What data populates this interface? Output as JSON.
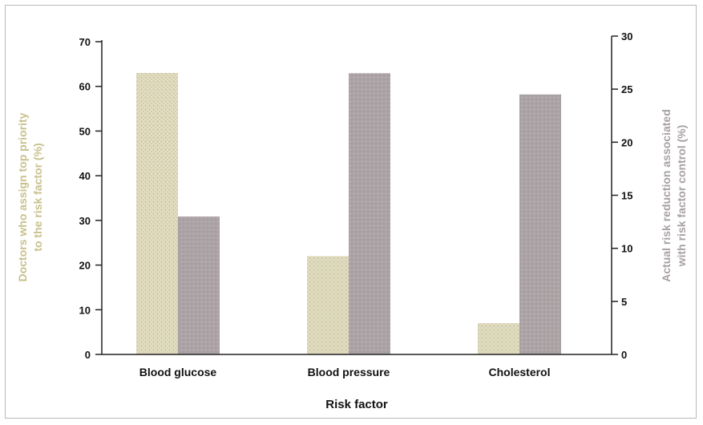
{
  "chart_data": {
    "type": "bar",
    "categories": [
      "Blood glucose",
      "Blood pressure",
      "Cholesterol"
    ],
    "series": [
      {
        "axis": "left",
        "color": "#ddd8b8",
        "values": [
          63,
          22,
          7
        ]
      },
      {
        "axis": "right",
        "color": "#aaa1a4",
        "values": [
          13,
          26.5,
          24.5
        ]
      }
    ],
    "xlabel": "Risk factor",
    "ylabel_left": {
      "line1": "Doctors who assign top priority",
      "line2": "to the risk factor (%)"
    },
    "ylabel_right": {
      "line1": "Actual risk reduction associated",
      "line2": "with risk factor control (%)"
    },
    "ylim_left": [
      0,
      70
    ],
    "ylim_right": [
      0,
      30
    ],
    "yticks_left": [
      "0",
      "10",
      "20",
      "30",
      "40",
      "50",
      "60",
      "70"
    ],
    "yticks_right": [
      "0",
      "5",
      "10",
      "15",
      "20",
      "25",
      "30"
    ],
    "grid": false,
    "legend": "none"
  }
}
